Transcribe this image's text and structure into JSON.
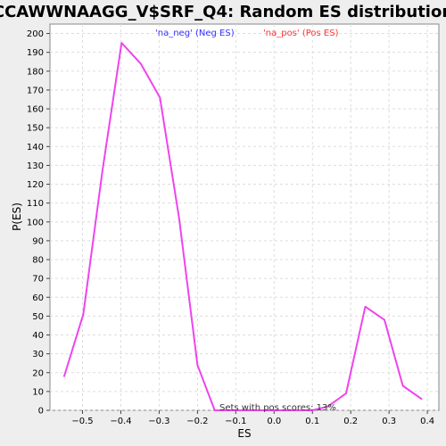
{
  "chart_data": {
    "type": "line",
    "title": "CCAWWNAAGG_V$SRF_Q4: Random ES distribution",
    "xlabel": "ES",
    "ylabel": "P(ES)",
    "xlim": [
      -0.585,
      0.43
    ],
    "ylim": [
      0,
      205
    ],
    "xticks": [
      -0.5,
      -0.4,
      -0.3,
      -0.2,
      -0.1,
      0.0,
      0.1,
      0.2,
      0.3,
      0.4
    ],
    "xtick_labels": [
      "−0.5",
      "−0.4",
      "−0.3",
      "−0.2",
      "−0.1",
      "0.0",
      "0.1",
      "0.2",
      "0.3",
      "0.4"
    ],
    "yticks": [
      0,
      10,
      20,
      30,
      40,
      50,
      60,
      70,
      80,
      90,
      100,
      110,
      120,
      130,
      140,
      150,
      160,
      170,
      180,
      190,
      200
    ],
    "grid": true,
    "legend": [
      {
        "label": "'na_neg' (Neg ES)",
        "color": "#3333ff"
      },
      {
        "label": "'na_pos' (Pos ES)",
        "color": "#ff3333"
      }
    ],
    "series": [
      {
        "color": "#ee44ee",
        "x": [
          -0.548,
          -0.498,
          -0.448,
          -0.398,
          -0.348,
          -0.298,
          -0.248,
          -0.2,
          -0.155,
          -0.1,
          -0.05,
          0.0,
          0.05,
          0.1,
          0.14,
          0.188,
          0.238,
          0.288,
          0.336,
          0.385
        ],
        "y": [
          18,
          51,
          127,
          195,
          184,
          166,
          102,
          24,
          0,
          0,
          0,
          0,
          0,
          0,
          2,
          9,
          55,
          48,
          13,
          6
        ]
      }
    ],
    "annotation": "Sets with pos scores: 13%"
  }
}
